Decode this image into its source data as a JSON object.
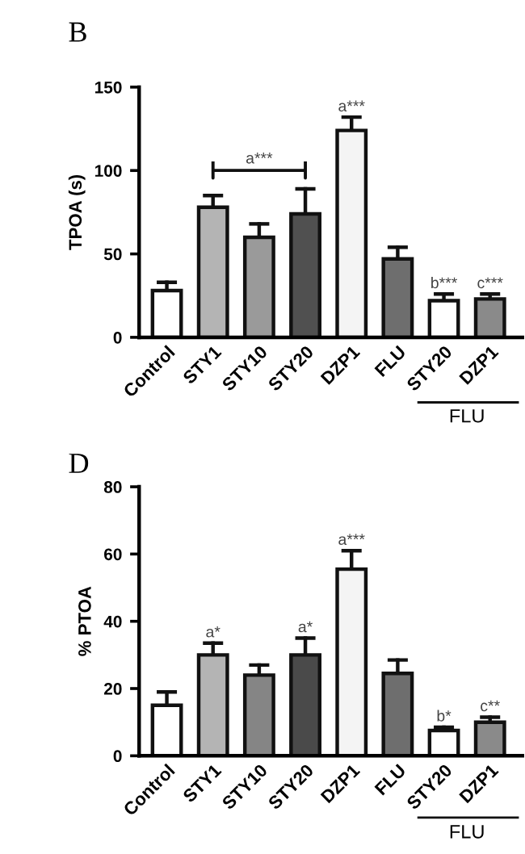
{
  "chart_data": [
    {
      "type": "bar",
      "title": "B",
      "ylabel": "TPOA (s)",
      "categories": [
        "Control",
        "STY1",
        "STY10",
        "STY20",
        "DZP1",
        "FLU",
        "STY20",
        "DZP1"
      ],
      "values": [
        28,
        78,
        60,
        74,
        124,
        47,
        22,
        23
      ],
      "errors": [
        5,
        7,
        8,
        15,
        8,
        7,
        4,
        3
      ],
      "colors": [
        "#ffffff",
        "#b4b4b4",
        "#9a9a9a",
        "#505050",
        "#f4f4f4",
        "#6e6e6e",
        "#ffffff",
        "#8a8a8a"
      ],
      "ylim": [
        0,
        150
      ],
      "yticks": [
        0,
        50,
        100,
        150
      ],
      "grid": false,
      "legend": false,
      "annotations": [
        "a***",
        {
          "text": "a***",
          "x": "DZP1",
          "y": 132
        },
        "b***",
        "c***",
        "FLU"
      ]
    },
    {
      "type": "bar",
      "title": "D",
      "ylabel": "% PTOA",
      "categories": [
        "Control",
        "STY1",
        "STY10",
        "STY20",
        "DZP1",
        "FLU",
        "STY20",
        "DZP1"
      ],
      "values": [
        15,
        30,
        24,
        30,
        55.5,
        24.5,
        7.5,
        10
      ],
      "errors": [
        4,
        3.5,
        3,
        5,
        5.5,
        4,
        1,
        1.5
      ],
      "colors": [
        "#ffffff",
        "#b4b4b4",
        "#858585",
        "#4a4a4a",
        "#f4f4f4",
        "#6e6e6e",
        "#ffffff",
        "#8a8a8a"
      ],
      "ylim": [
        0,
        80
      ],
      "yticks": [
        0,
        20,
        40,
        60,
        80
      ],
      "grid": false,
      "legend": false,
      "annotations": [
        {
          "text": "a*",
          "x": "STY1",
          "y": 33.5
        },
        {
          "text": "a*",
          "x": "STY20",
          "y": 35
        },
        {
          "text": "a***",
          "x": "DZP1",
          "y": 61
        },
        "b*",
        "c**",
        "FLU"
      ]
    }
  ]
}
